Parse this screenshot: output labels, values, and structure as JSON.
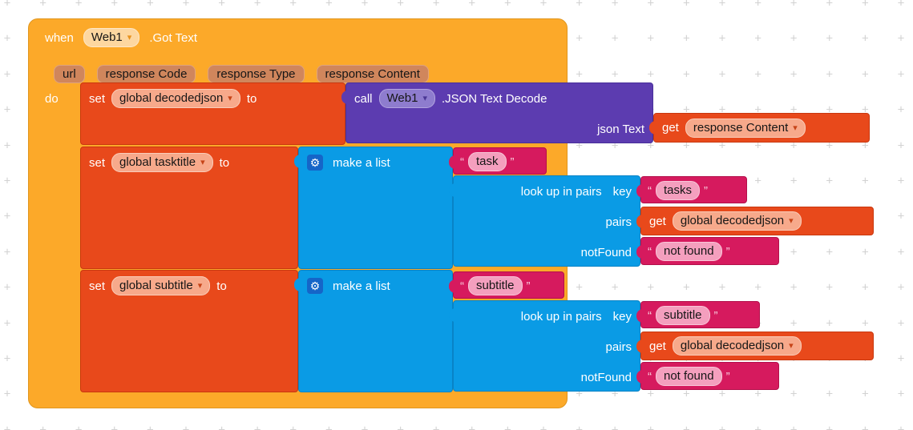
{
  "icons": {
    "gear": "⚙",
    "dropdown_arrow": "▾",
    "quote_open": "“",
    "quote_close": "”"
  },
  "colors": {
    "event_block": "#FCA929",
    "variable_block": "#E8491B",
    "component_block": "#5C3CB0",
    "list_block": "#0A9BE5",
    "text_block": "#D61A5E",
    "workspace_bg": "#FFFFFF",
    "grid_marker": "#D2D2D2"
  },
  "event": {
    "keyword": "when",
    "component": "Web1",
    "name": ".Got Text",
    "params": [
      "url",
      "response Code",
      "response Type",
      "response Content"
    ],
    "do_label": "do"
  },
  "set_decodedjson": {
    "set": "set",
    "variable": "global decodedjson",
    "to": "to"
  },
  "call_decode": {
    "call": "call",
    "component": "Web1",
    "method": ".JSON Text Decode",
    "arg_label": "json Text"
  },
  "get_response_content": {
    "get": "get",
    "variable": "response Content"
  },
  "set_tasktitle": {
    "set": "set",
    "variable": "global tasktitle",
    "to": "to"
  },
  "make_list_task": {
    "label": "make a list",
    "item": "task"
  },
  "lookup_tasks": {
    "label": "look up in pairs",
    "key_label": "key",
    "key": "tasks",
    "pairs_label": "pairs",
    "not_found_label": "notFound",
    "not_found": "not found"
  },
  "get_decodedjson_1": {
    "get": "get",
    "variable": "global decodedjson"
  },
  "set_subtitle": {
    "set": "set",
    "variable": "global subtitle",
    "to": "to"
  },
  "make_list_subtitle": {
    "label": "make a list",
    "item": "subtitle"
  },
  "lookup_subtitle": {
    "label": "look up in pairs",
    "key_label": "key",
    "key": "subtitle",
    "pairs_label": "pairs",
    "not_found_label": "notFound",
    "not_found": "not found"
  },
  "get_decodedjson_2": {
    "get": "get",
    "variable": "global decodedjson"
  }
}
